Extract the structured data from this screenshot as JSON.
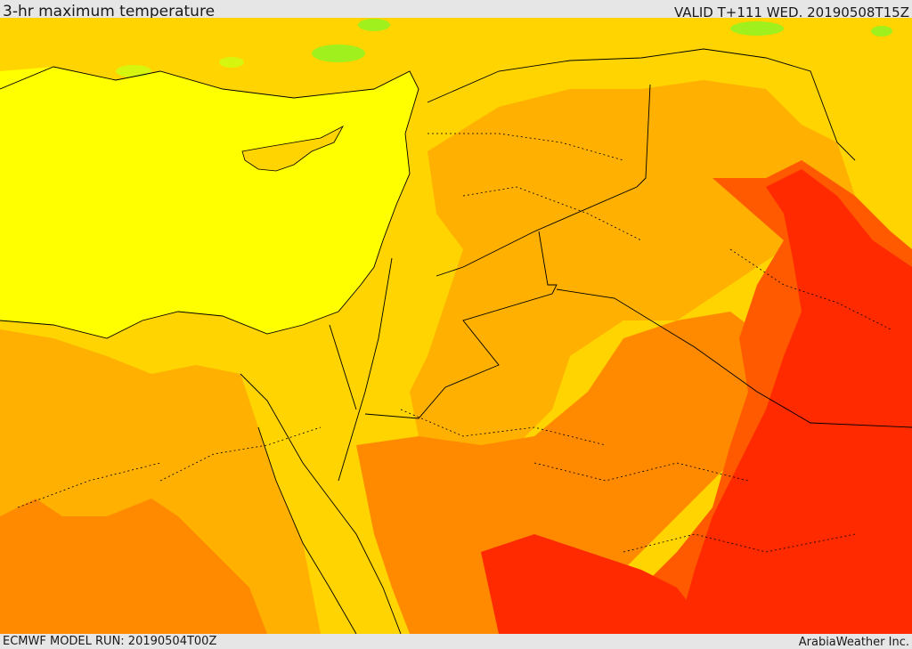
{
  "header": {
    "title": "3-hr maximum temperature",
    "valid": "VALID T+111 WED. 20190508T15Z"
  },
  "footer": {
    "model_run": "ECMWF MODEL RUN: 20190504T00Z",
    "credit": "ArabiaWeather Inc."
  },
  "palette": {
    "green": "#9ff01c",
    "lime": "#d6f50f",
    "yellow": "#ffff00",
    "yellow_orange": "#ffd400",
    "orange_light": "#ffb000",
    "orange": "#ff8a00",
    "orange_red": "#ff5a00",
    "red": "#ff2a00",
    "border": "#000000"
  }
}
